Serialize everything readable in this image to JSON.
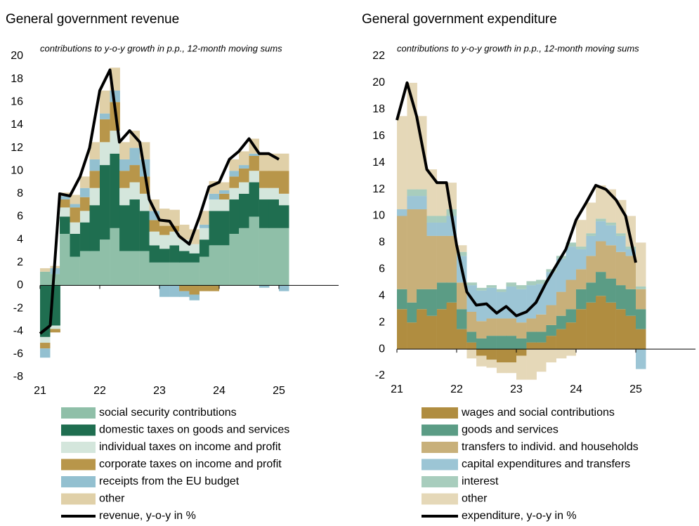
{
  "chart_data": [
    {
      "type": "bar",
      "stacked": true,
      "title": "General government revenue",
      "subtitle": "contributions to y-o-y growth in p.p., 12-month moving sums",
      "x": [
        21.0,
        21.17,
        21.33,
        21.5,
        21.67,
        21.83,
        22.0,
        22.17,
        22.33,
        22.5,
        22.67,
        22.83,
        23.0,
        23.17,
        23.33,
        23.5,
        23.67,
        23.83,
        24.0,
        24.17,
        24.33,
        24.5,
        24.67,
        24.83,
        25.0
      ],
      "xlim": [
        21,
        26
      ],
      "xticks": [
        21,
        22,
        23,
        24,
        25
      ],
      "ylim": [
        -8,
        20
      ],
      "yticks": [
        -8,
        -6,
        -4,
        -2,
        0,
        2,
        4,
        6,
        8,
        10,
        12,
        14,
        16,
        18,
        20
      ],
      "series": [
        {
          "name": "social security contributions",
          "color": "#8fbfa8",
          "values": [
            1.2,
            1.0,
            4.5,
            2.5,
            3,
            3,
            4,
            5,
            3,
            3,
            3,
            2,
            2,
            2,
            2,
            2,
            2.5,
            3.5,
            3.5,
            4.5,
            5,
            6,
            5,
            5,
            5
          ]
        },
        {
          "name": "domestic taxes on goods and services",
          "color": "#1f6e50",
          "values": [
            -4.5,
            -3.5,
            1.5,
            2,
            2.5,
            4,
            6.5,
            6.5,
            4,
            4.5,
            3.5,
            1.5,
            1.2,
            1.5,
            1,
            0.8,
            1.5,
            3,
            3,
            3,
            3,
            3,
            2.5,
            2.5,
            2
          ]
        },
        {
          "name": "individual taxes on income and profit",
          "color": "#d4e6dc",
          "values": [
            -0.5,
            -0.3,
            0.8,
            1,
            1,
            1.5,
            2,
            2,
            1.5,
            1.5,
            1.5,
            1.2,
            1.2,
            1.2,
            1,
            0.8,
            1,
            1,
            1,
            1,
            1,
            1,
            1,
            1,
            1
          ]
        },
        {
          "name": "corporate taxes on income and profit",
          "color": "#b8964a",
          "values": [
            -0.5,
            -0.3,
            0.7,
            1.3,
            1.2,
            1.5,
            2,
            2.5,
            1.5,
            1.5,
            1.5,
            1,
            0.8,
            0.5,
            -0.5,
            -0.8,
            -0.5,
            -0.5,
            0.5,
            1,
            1.2,
            1.3,
            1.5,
            1.5,
            2
          ]
        },
        {
          "name": "receipts from the EU budget",
          "color": "#93c0d0",
          "values": [
            -0.8,
            0.5,
            0.3,
            0.3,
            0.8,
            1,
            0.5,
            1,
            1,
            1.5,
            1.5,
            0.8,
            -1,
            -1,
            -0.5,
            -0.5,
            0.3,
            0.5,
            0.3,
            0.5,
            0.3,
            0.2,
            -0.2,
            0,
            -0.5
          ]
        },
        {
          "name": "other",
          "color": "#e0d0a8",
          "values": [
            0.3,
            0.2,
            0.3,
            0.8,
            1,
            1.5,
            2,
            2,
            1.5,
            1.5,
            1.5,
            1,
            1.5,
            1.4,
            1.3,
            1.3,
            1.2,
            1.1,
            0.7,
            1,
            1.2,
            1.3,
            1.5,
            1.5,
            1.5
          ]
        }
      ],
      "line": {
        "name": "revenue, y-o-y in %",
        "color": "#000000",
        "values": [
          -4.2,
          -3.5,
          8.0,
          7.8,
          9.5,
          12,
          17,
          18.8,
          12.5,
          13.5,
          12.5,
          7.5,
          5.7,
          5.6,
          4.3,
          3.6,
          6,
          8.6,
          9,
          11,
          11.7,
          12.8,
          11.5,
          11.5,
          11
        ]
      }
    },
    {
      "type": "bar",
      "stacked": true,
      "title": "General government expenditure",
      "subtitle": "contributions to y-o-y growth in p.p., 12-month moving sums",
      "x": [
        21.0,
        21.17,
        21.33,
        21.5,
        21.67,
        21.83,
        22.0,
        22.17,
        22.33,
        22.5,
        22.67,
        22.83,
        23.0,
        23.17,
        23.33,
        23.5,
        23.67,
        23.83,
        24.0,
        24.17,
        24.33,
        24.5,
        24.67,
        24.83,
        25.0
      ],
      "xlim": [
        21,
        26
      ],
      "xticks": [
        21,
        22,
        23,
        24,
        25
      ],
      "ylim": [
        -2,
        22
      ],
      "yticks": [
        -2,
        0,
        2,
        4,
        6,
        8,
        10,
        12,
        14,
        16,
        18,
        20,
        22
      ],
      "series": [
        {
          "name": "wages and social contributions",
          "color": "#b08d40",
          "values": [
            3,
            2,
            3,
            2.5,
            3,
            3.5,
            1.5,
            0.5,
            -0.5,
            -0.8,
            -1,
            -1,
            -0.5,
            0.5,
            0.5,
            1,
            1.5,
            2,
            3,
            3.5,
            4,
            3.5,
            3,
            2.5,
            1.5
          ]
        },
        {
          "name": "goods and services",
          "color": "#5b9c85",
          "values": [
            1.5,
            1.5,
            1.5,
            2,
            2,
            1.5,
            1.5,
            0.8,
            0.8,
            1,
            1,
            1,
            0.8,
            0.8,
            0.8,
            0.8,
            1,
            1,
            1.5,
            1.5,
            1.8,
            1.8,
            1.8,
            2,
            1.5
          ]
        },
        {
          "name": "transfers to individ. and households",
          "color": "#c8b07a",
          "values": [
            5.5,
            7,
            6,
            4,
            3.5,
            3.5,
            2,
            1.5,
            1.3,
            1.3,
            1.3,
            1.3,
            1.2,
            1,
            1.3,
            1.5,
            1.8,
            2.2,
            1.5,
            2,
            2.3,
            2.5,
            2.5,
            2.5,
            1.5
          ]
        },
        {
          "name": "capital expenditures and transfers",
          "color": "#9cc5d5",
          "values": [
            0.5,
            1,
            1,
            1,
            1,
            1.5,
            2,
            2,
            2.3,
            2.3,
            2,
            2.4,
            2.5,
            2.5,
            2.3,
            2.5,
            2.5,
            2.5,
            1.5,
            1.5,
            1.5,
            1.5,
            1.2,
            0.5,
            -1.5
          ]
        },
        {
          "name": "interest",
          "color": "#a8cdbd",
          "values": [
            0,
            0.5,
            0.5,
            0.5,
            0.5,
            0.5,
            0.3,
            0.2,
            0.2,
            0.2,
            0.2,
            0.3,
            0.3,
            0.3,
            0.3,
            0.2,
            0.2,
            0.3,
            0.2,
            0.2,
            0.2,
            0.2,
            0.2,
            0.2,
            0.2
          ]
        },
        {
          "name": "other",
          "color": "#e5d8b8",
          "values": [
            7,
            8,
            5.5,
            3.5,
            2.5,
            2,
            0.5,
            -0.7,
            -0.8,
            -0.6,
            -0.8,
            -0.8,
            -1.8,
            -2.3,
            -1.7,
            -1,
            -0.7,
            -0.5,
            2,
            2.3,
            2.5,
            2.5,
            2.5,
            2.3,
            3.3
          ]
        }
      ],
      "line": {
        "name": "expenditure, y-o-y in %",
        "color": "#000000",
        "values": [
          17.2,
          20,
          17.5,
          13.5,
          12.5,
          12.5,
          7.8,
          4.3,
          3.3,
          3.4,
          2.7,
          3.2,
          2.5,
          2.8,
          3.5,
          5,
          6.3,
          7.5,
          9.7,
          11,
          12.3,
          12,
          11.2,
          10,
          6.5
        ]
      }
    }
  ]
}
